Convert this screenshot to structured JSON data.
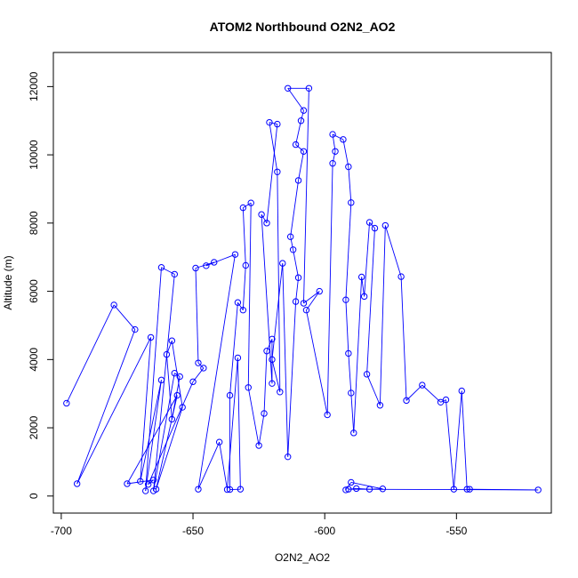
{
  "chart_data": {
    "type": "line",
    "title": "ATOM2 Northbound O2N2_AO2",
    "xlabel": "O2N2_AO2",
    "ylabel": "Altitude (m)",
    "xlim": [
      -703,
      -514
    ],
    "ylim": [
      -500,
      13000
    ],
    "xticks": [
      -700,
      -650,
      -600,
      -550
    ],
    "yticks": [
      0,
      2000,
      4000,
      6000,
      8000,
      10000,
      12000
    ],
    "grid": false,
    "markers": "open-circle",
    "line_color": "#0000ff",
    "series": [
      {
        "values": [
          [
            -698,
            2720
          ],
          [
            -680,
            5600
          ],
          [
            -672,
            4880
          ],
          [
            -694,
            360
          ],
          [
            -666,
            4650
          ],
          [
            -670,
            430
          ],
          [
            -662,
            3400
          ],
          [
            -668,
            150
          ],
          [
            -662,
            6700
          ],
          [
            -657,
            6500
          ],
          [
            -665,
            150
          ],
          [
            -657,
            3600
          ],
          [
            -655,
            3500
          ],
          [
            -658,
            2250
          ],
          [
            -660,
            4150
          ],
          [
            -658,
            4550
          ],
          [
            -654,
            2600
          ],
          [
            -664,
            200
          ],
          [
            -656,
            2950
          ],
          [
            -675,
            360
          ],
          [
            -665,
            470
          ],
          [
            -667,
            340
          ],
          [
            -650,
            3350
          ],
          [
            -646,
            3750
          ],
          [
            -648,
            3900
          ],
          [
            -649,
            6680
          ],
          [
            -642,
            6850
          ],
          [
            -645,
            6750
          ],
          [
            -634,
            7080
          ],
          [
            -648,
            200
          ],
          [
            -640,
            1580
          ],
          [
            -637,
            190
          ],
          [
            -633,
            4050
          ],
          [
            -632,
            200
          ],
          [
            -636,
            190
          ],
          [
            -636,
            2950
          ],
          [
            -633,
            5670
          ],
          [
            -631,
            5450
          ],
          [
            -630,
            6760
          ],
          [
            -631,
            8450
          ],
          [
            -628,
            8590
          ],
          [
            -629,
            3180
          ],
          [
            -625,
            1480
          ],
          [
            -623,
            2420
          ],
          [
            -622,
            4250
          ],
          [
            -620,
            4600
          ],
          [
            -620,
            3300
          ],
          [
            -624,
            8250
          ],
          [
            -622,
            8000
          ],
          [
            -618,
            10900
          ],
          [
            -621,
            10950
          ],
          [
            -618,
            9500
          ],
          [
            -617,
            3050
          ],
          [
            -620,
            4000
          ],
          [
            -616,
            6820
          ],
          [
            -614,
            1150
          ],
          [
            -611,
            5700
          ],
          [
            -610,
            6400
          ],
          [
            -612,
            7220
          ],
          [
            -613,
            7600
          ],
          [
            -610,
            9250
          ],
          [
            -608,
            10100
          ],
          [
            -611,
            10300
          ],
          [
            -609,
            11000
          ],
          [
            -608,
            11300
          ],
          [
            -614,
            11950
          ],
          [
            -606,
            11950
          ],
          [
            -608,
            5650
          ],
          [
            -602,
            6000
          ],
          [
            -607,
            5450
          ],
          [
            -599,
            2380
          ],
          [
            -597,
            9750
          ],
          [
            -596,
            10100
          ],
          [
            -597,
            10600
          ],
          [
            -593,
            10450
          ],
          [
            -591,
            9650
          ],
          [
            -590,
            8600
          ],
          [
            -592,
            5750
          ],
          [
            -591,
            4180
          ],
          [
            -590,
            3020
          ],
          [
            -589,
            1850
          ],
          [
            -586,
            6420
          ],
          [
            -585,
            5850
          ],
          [
            -583,
            8020
          ],
          [
            -581,
            7850
          ],
          [
            -584,
            3570
          ],
          [
            -579,
            2660
          ],
          [
            -577,
            7930
          ],
          [
            -571,
            6430
          ],
          [
            -569,
            2800
          ],
          [
            -563,
            3250
          ],
          [
            -556,
            2750
          ],
          [
            -554,
            2820
          ],
          [
            -551,
            200
          ],
          [
            -548,
            3080
          ],
          [
            -546,
            200
          ],
          [
            -545,
            200
          ],
          [
            -519,
            180
          ],
          [
            -591,
            200
          ],
          [
            -588,
            220
          ],
          [
            -583,
            200
          ],
          [
            -578,
            210
          ],
          [
            -590,
            400
          ],
          [
            -592,
            180
          ]
        ]
      }
    ]
  }
}
